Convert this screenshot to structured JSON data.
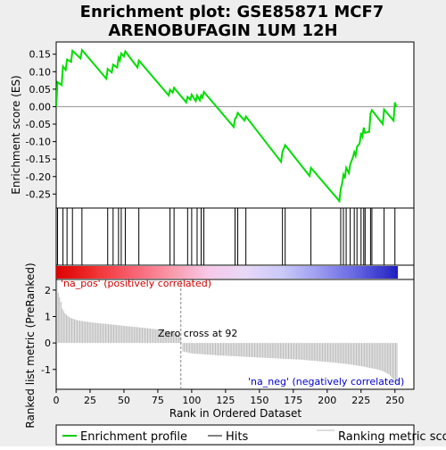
{
  "chart_data": {
    "type": "line",
    "title_line1": "Enrichment plot: GSE85871 MCF7",
    "title_line2": "ARENOBUFAGIN 1UM 12H",
    "xlabel": "Rank in Ordered Dataset",
    "es_ylabel": "Enrichment score (ES)",
    "metric_ylabel": "Ranked list metric (PreRanked)",
    "xlim": [
      0,
      264
    ],
    "x_ticks": [
      0,
      25,
      50,
      75,
      100,
      125,
      150,
      175,
      200,
      225,
      250
    ],
    "es_ylim": [
      -0.29,
      0.185
    ],
    "es_ticks": [
      0.15,
      0.1,
      0.05,
      0.0,
      -0.05,
      -0.1,
      -0.15,
      -0.2,
      -0.25
    ],
    "es_tick_labels": [
      "0.15",
      "0.10",
      "0.05",
      "0.00",
      "-0.05",
      "-0.10",
      "-0.15",
      "-0.20",
      "-0.25"
    ],
    "metric_ylim": [
      -1.75,
      2.4
    ],
    "metric_ticks": [
      2,
      1,
      0,
      -1
    ],
    "n_genes": 252,
    "zero_cross": 92,
    "zero_cross_label": "Zero cross at 92",
    "pos_label": "'na_pos' (positively correlated)",
    "neg_label": "'na_neg' (negatively correlated)",
    "hits": [
      1,
      5,
      8,
      12,
      19,
      38,
      42,
      46,
      48,
      51,
      61,
      84,
      87,
      97,
      100,
      104,
      107,
      109,
      132,
      134,
      140,
      167,
      169,
      188,
      210,
      212,
      214,
      217,
      220,
      222,
      225,
      227,
      228,
      232,
      233,
      242,
      250
    ],
    "es_curve": {
      "x": [
        0,
        1,
        4,
        5,
        7,
        8,
        11,
        12,
        18,
        19,
        37,
        38,
        41,
        42,
        45,
        46,
        47,
        48,
        50,
        51,
        60,
        61,
        83,
        84,
        86,
        87,
        96,
        97,
        99,
        100,
        103,
        104,
        106,
        107,
        108,
        109,
        131,
        132,
        133,
        134,
        139,
        140,
        166,
        167,
        168,
        169,
        187,
        188,
        209,
        210,
        211,
        212,
        213,
        214,
        216,
        217,
        219,
        220,
        221,
        222,
        224,
        225,
        226,
        227,
        228,
        231,
        232,
        233,
        241,
        242,
        249,
        250,
        251
      ],
      "y": [
        0.0,
        0.07,
        0.062,
        0.115,
        0.105,
        0.135,
        0.128,
        0.16,
        0.138,
        0.162,
        0.08,
        0.108,
        0.098,
        0.12,
        0.112,
        0.14,
        0.132,
        0.152,
        0.144,
        0.158,
        0.112,
        0.132,
        0.032,
        0.048,
        0.04,
        0.054,
        0.012,
        0.028,
        0.02,
        0.034,
        0.016,
        0.032,
        0.018,
        0.032,
        0.026,
        0.042,
        -0.058,
        -0.035,
        -0.03,
        -0.018,
        -0.04,
        -0.028,
        -0.158,
        -0.128,
        -0.12,
        -0.11,
        -0.198,
        -0.175,
        -0.27,
        -0.235,
        -0.22,
        -0.195,
        -0.205,
        -0.175,
        -0.19,
        -0.165,
        -0.145,
        -0.13,
        -0.14,
        -0.115,
        -0.105,
        -0.075,
        -0.085,
        -0.06,
        -0.075,
        -0.072,
        -0.02,
        -0.01,
        -0.05,
        -0.008,
        -0.04,
        0.012,
        0.0
      ]
    },
    "metric_curve": {
      "x": [
        0,
        1,
        2,
        3,
        4,
        6,
        8,
        10,
        15,
        25,
        40,
        55,
        70,
        85,
        91,
        92,
        93,
        100,
        120,
        150,
        180,
        200,
        215,
        225,
        235,
        240,
        245,
        248,
        250,
        251
      ],
      "y": [
        2.35,
        1.9,
        1.72,
        1.55,
        1.3,
        1.12,
        1.02,
        0.95,
        0.86,
        0.78,
        0.7,
        0.62,
        0.54,
        0.43,
        0.25,
        0.02,
        -0.32,
        -0.4,
        -0.47,
        -0.55,
        -0.63,
        -0.72,
        -0.8,
        -0.88,
        -0.98,
        -1.05,
        -1.18,
        -1.35,
        -1.5,
        -1.55
      ]
    },
    "legend": [
      {
        "label": "Enrichment profile",
        "color": "#00cc00",
        "kind": "thick-line"
      },
      {
        "label": "Hits",
        "color": "#000000",
        "kind": "line"
      },
      {
        "label": "Ranking metric scores",
        "color": "#bbbbbb",
        "kind": "line"
      }
    ],
    "colors": {
      "enrichment": "#00dd00",
      "hits": "#000000",
      "metric": "#bbbbbb",
      "zero_cross_line": "#888888",
      "pos_text": "#cc0000",
      "neg_text": "#0000cc",
      "zero_text": "#000000"
    },
    "gradient_stops": [
      "#dd0000",
      "#f03030",
      "#f86070",
      "#f898a8",
      "#f8c8e8",
      "#e8d8f8",
      "#c8c8f8",
      "#9898f0",
      "#6060e0",
      "#2020c0"
    ]
  }
}
